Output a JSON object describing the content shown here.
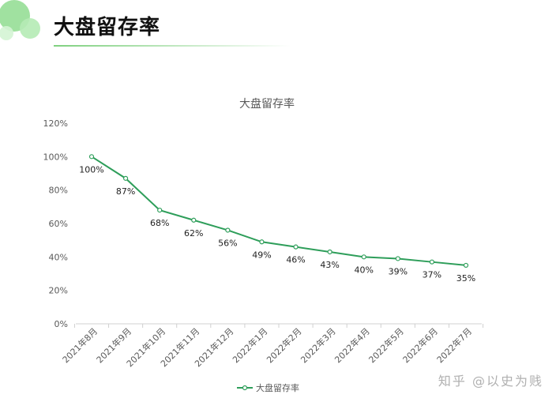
{
  "header": {
    "title": "大盘留存率"
  },
  "watermark": {
    "text": "知乎 @以史为贱"
  },
  "colors": {
    "line": "#2e9e5a",
    "accent": "#52c46b"
  },
  "chart_data": {
    "type": "line",
    "title": "大盘留存率",
    "categories": [
      "2021年8月",
      "2021年9月",
      "2021年10月",
      "2021年11月",
      "2021年12月",
      "2022年1月",
      "2022年2月",
      "2022年3月",
      "2022年4月",
      "2022年5月",
      "2022年6月",
      "2022年7月"
    ],
    "series": [
      {
        "name": "大盘留存率",
        "values": [
          100,
          87,
          68,
          62,
          56,
          49,
          46,
          43,
          40,
          39,
          37,
          35
        ]
      }
    ],
    "data_labels": [
      "100%",
      "87%",
      "68%",
      "62%",
      "56%",
      "49%",
      "46%",
      "43%",
      "40%",
      "39%",
      "37%",
      "35%"
    ],
    "y_ticks": [
      "0%",
      "20%",
      "40%",
      "60%",
      "80%",
      "100%",
      "120%"
    ],
    "ylim": [
      0,
      120
    ],
    "legend": "bottom",
    "grid": false
  }
}
